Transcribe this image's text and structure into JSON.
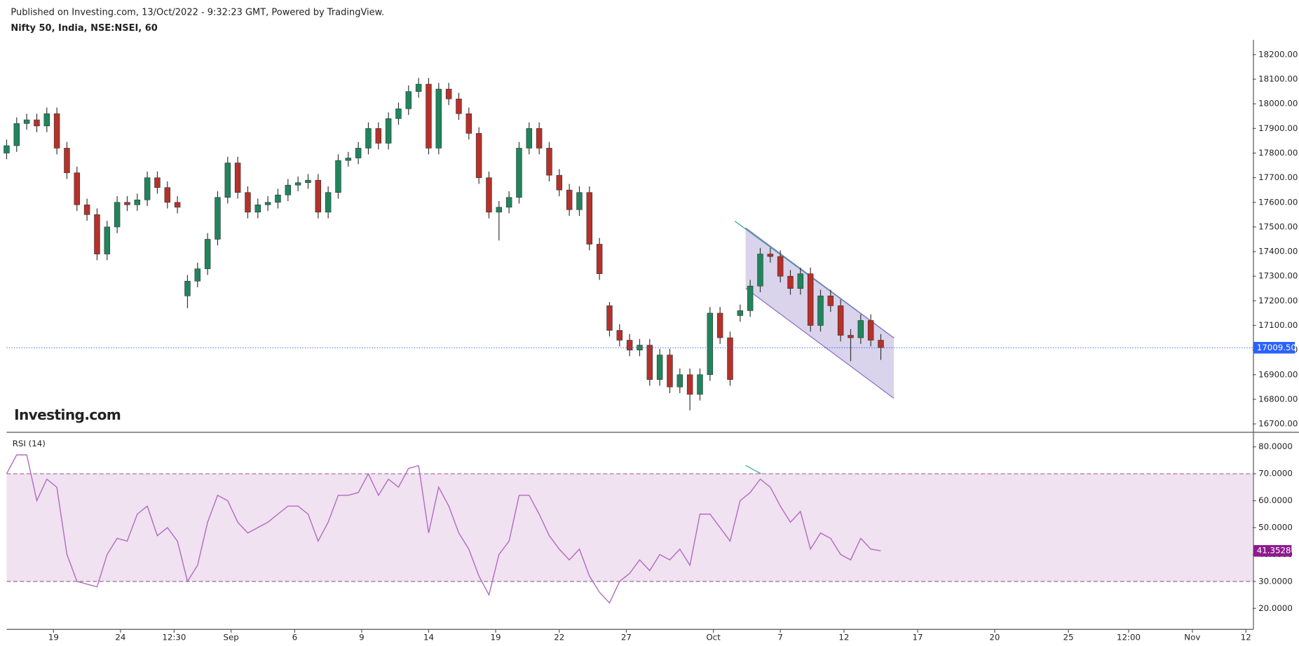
{
  "chart_data": {
    "type": "candlestick",
    "title": "Published on Investing.com, 13/Oct/2022 - 9:32:23 GMT, Powered by TradingView.",
    "subtitle": "Nifty 50, India, NSE:NSEI, 60",
    "watermark": "Investing.com",
    "up_color": "#20855c",
    "down_color": "#b5312a",
    "xlim": [
      0,
      372
    ],
    "xticks": [
      {
        "value": 14,
        "label": "19"
      },
      {
        "value": 34,
        "label": "24"
      },
      {
        "value": 50,
        "label": "12:30"
      },
      {
        "value": 67,
        "label": "Sep"
      },
      {
        "value": 86,
        "label": "6"
      },
      {
        "value": 106,
        "label": "9"
      },
      {
        "value": 126,
        "label": "14"
      },
      {
        "value": 146,
        "label": "19"
      },
      {
        "value": 165,
        "label": "22"
      },
      {
        "value": 185,
        "label": "27"
      },
      {
        "value": 211,
        "label": "Oct"
      },
      {
        "value": 231,
        "label": "7"
      },
      {
        "value": 250,
        "label": "12"
      },
      {
        "value": 272,
        "label": "17"
      },
      {
        "value": 295,
        "label": "20"
      },
      {
        "value": 317,
        "label": "25"
      },
      {
        "value": 335,
        "label": "12:00"
      },
      {
        "value": 354,
        "label": "Nov"
      },
      {
        "value": 370,
        "label": "12"
      }
    ],
    "ylim": [
      16666,
      18260
    ],
    "yticks": [
      {
        "value": 16700,
        "label": "16700.00"
      },
      {
        "value": 16800,
        "label": "16800.00"
      },
      {
        "value": 16900,
        "label": "16900.00"
      },
      {
        "value": 17000,
        "label": "17000.00"
      },
      {
        "value": 17100,
        "label": "17100.00"
      },
      {
        "value": 17200,
        "label": "17200.00"
      },
      {
        "value": 17300,
        "label": "17300.00"
      },
      {
        "value": 17400,
        "label": "17400.00"
      },
      {
        "value": 17500,
        "label": "17500.00"
      },
      {
        "value": 17600,
        "label": "17600.00"
      },
      {
        "value": 17700,
        "label": "17700.00"
      },
      {
        "value": 17800,
        "label": "17800.00"
      },
      {
        "value": 17900,
        "label": "17900.00"
      },
      {
        "value": 18000,
        "label": "18000.00"
      },
      {
        "value": 18100,
        "label": "18100.00"
      },
      {
        "value": 18200,
        "label": "18200.00"
      }
    ],
    "last_price": {
      "value": 17009.5,
      "label": "17009.50"
    },
    "x": [
      0,
      3,
      6,
      9,
      12,
      15,
      18,
      21,
      24,
      27,
      30,
      33,
      36,
      39,
      42,
      45,
      48,
      51,
      54,
      57,
      60,
      63,
      66,
      69,
      72,
      75,
      78,
      81,
      84,
      87,
      90,
      93,
      96,
      99,
      102,
      105,
      108,
      111,
      114,
      117,
      120,
      123,
      126,
      129,
      132,
      135,
      138,
      141,
      144,
      147,
      150,
      153,
      156,
      159,
      162,
      165,
      168,
      171,
      174,
      177,
      180,
      183,
      186,
      189,
      192,
      195,
      198,
      201,
      204,
      207,
      210,
      213,
      216,
      219,
      222,
      225,
      228,
      231,
      234,
      237,
      240,
      243,
      246,
      249,
      252,
      255,
      258,
      261
    ],
    "candles": [
      [
        17800,
        17855,
        17775,
        17830
      ],
      [
        17830,
        17945,
        17805,
        17920
      ],
      [
        17920,
        17960,
        17895,
        17935
      ],
      [
        17935,
        17960,
        17885,
        17910
      ],
      [
        17910,
        17985,
        17885,
        17960
      ],
      [
        17960,
        17985,
        17795,
        17820
      ],
      [
        17820,
        17845,
        17695,
        17720
      ],
      [
        17720,
        17745,
        17565,
        17590
      ],
      [
        17590,
        17615,
        17525,
        17550
      ],
      [
        17550,
        17575,
        17365,
        17390
      ],
      [
        17390,
        17525,
        17365,
        17500
      ],
      [
        17500,
        17625,
        17475,
        17600
      ],
      [
        17600,
        17625,
        17565,
        17590
      ],
      [
        17590,
        17635,
        17565,
        17610
      ],
      [
        17610,
        17725,
        17585,
        17700
      ],
      [
        17700,
        17725,
        17635,
        17660
      ],
      [
        17660,
        17685,
        17575,
        17600
      ],
      [
        17600,
        17625,
        17555,
        17580
      ],
      [
        17220,
        17305,
        17170,
        17280
      ],
      [
        17280,
        17355,
        17255,
        17330
      ],
      [
        17330,
        17475,
        17305,
        17450
      ],
      [
        17450,
        17645,
        17425,
        17620
      ],
      [
        17620,
        17785,
        17595,
        17760
      ],
      [
        17760,
        17785,
        17615,
        17640
      ],
      [
        17640,
        17665,
        17535,
        17560
      ],
      [
        17560,
        17615,
        17535,
        17590
      ],
      [
        17590,
        17625,
        17565,
        17600
      ],
      [
        17600,
        17655,
        17575,
        17630
      ],
      [
        17630,
        17695,
        17605,
        17670
      ],
      [
        17670,
        17705,
        17645,
        17680
      ],
      [
        17680,
        17715,
        17655,
        17690
      ],
      [
        17690,
        17715,
        17535,
        17560
      ],
      [
        17560,
        17665,
        17535,
        17640
      ],
      [
        17640,
        17795,
        17615,
        17770
      ],
      [
        17770,
        17805,
        17745,
        17780
      ],
      [
        17780,
        17845,
        17755,
        17820
      ],
      [
        17820,
        17925,
        17795,
        17900
      ],
      [
        17900,
        17925,
        17815,
        17840
      ],
      [
        17840,
        17965,
        17815,
        17940
      ],
      [
        17940,
        18005,
        17915,
        17980
      ],
      [
        17980,
        18075,
        17955,
        18050
      ],
      [
        18050,
        18105,
        18025,
        18080
      ],
      [
        18080,
        18105,
        17795,
        17820
      ],
      [
        17820,
        18085,
        17795,
        18060
      ],
      [
        18060,
        18085,
        17995,
        18020
      ],
      [
        18020,
        18045,
        17935,
        17960
      ],
      [
        17960,
        17985,
        17855,
        17880
      ],
      [
        17880,
        17905,
        17675,
        17700
      ],
      [
        17700,
        17725,
        17535,
        17560
      ],
      [
        17560,
        17605,
        17445,
        17580
      ],
      [
        17580,
        17645,
        17555,
        17620
      ],
      [
        17620,
        17845,
        17595,
        17820
      ],
      [
        17820,
        17925,
        17795,
        17900
      ],
      [
        17900,
        17925,
        17795,
        17820
      ],
      [
        17820,
        17845,
        17685,
        17710
      ],
      [
        17710,
        17735,
        17625,
        17650
      ],
      [
        17650,
        17675,
        17545,
        17570
      ],
      [
        17570,
        17665,
        17545,
        17640
      ],
      [
        17640,
        17665,
        17405,
        17430
      ],
      [
        17430,
        17455,
        17285,
        17310
      ],
      [
        17180,
        17195,
        17055,
        17080
      ],
      [
        17080,
        17105,
        17015,
        17040
      ],
      [
        17040,
        17065,
        16975,
        17000
      ],
      [
        17000,
        17045,
        16975,
        17020
      ],
      [
        17020,
        17045,
        16855,
        16880
      ],
      [
        16880,
        17005,
        16855,
        16980
      ],
      [
        16980,
        17005,
        16825,
        16850
      ],
      [
        16850,
        16925,
        16825,
        16900
      ],
      [
        16900,
        16925,
        16755,
        16820
      ],
      [
        16820,
        16925,
        16795,
        16900
      ],
      [
        16900,
        17175,
        16875,
        17150
      ],
      [
        17150,
        17175,
        17025,
        17050
      ],
      [
        17050,
        17075,
        16855,
        16880
      ],
      [
        17140,
        17185,
        17115,
        17160
      ],
      [
        17160,
        17285,
        17135,
        17260
      ],
      [
        17260,
        17415,
        17235,
        17390
      ],
      [
        17390,
        17415,
        17355,
        17380
      ],
      [
        17380,
        17405,
        17275,
        17300
      ],
      [
        17300,
        17325,
        17225,
        17250
      ],
      [
        17250,
        17335,
        17225,
        17310
      ],
      [
        17310,
        17335,
        17075,
        17100
      ],
      [
        17100,
        17245,
        17075,
        17220
      ],
      [
        17220,
        17245,
        17155,
        17180
      ],
      [
        17180,
        17205,
        17035,
        17060
      ],
      [
        17060,
        17085,
        16955,
        17050
      ],
      [
        17050,
        17145,
        17025,
        17120
      ],
      [
        17120,
        17145,
        17015,
        17040
      ],
      [
        17040,
        17065,
        16960,
        17010
      ]
    ],
    "rsi": {
      "name": "RSI (14)",
      "color": "#b46ac4",
      "ylim": [
        12.2,
        85.4
      ],
      "yticks": [
        {
          "value": 20,
          "label": "20.0000"
        },
        {
          "value": 30,
          "label": "30.0000"
        },
        {
          "value": 40,
          "label": "40.0000"
        },
        {
          "value": 50,
          "label": "50.0000"
        },
        {
          "value": 60,
          "label": "60.0000"
        },
        {
          "value": 70,
          "label": "70.0000"
        },
        {
          "value": 80,
          "label": "80.0000"
        }
      ],
      "levels": [
        30,
        70
      ],
      "last": {
        "value": 41.3528,
        "label": "41.3528"
      },
      "values": [
        70,
        77,
        77,
        60,
        68,
        65,
        40,
        30,
        29,
        28,
        40,
        46,
        45,
        55,
        58,
        47,
        50,
        45,
        30,
        36,
        52,
        62,
        60,
        52,
        48,
        50,
        52,
        55,
        58,
        58,
        55,
        45,
        52,
        62,
        62,
        63,
        70,
        62,
        68,
        65,
        72,
        73,
        48,
        65,
        58,
        48,
        42,
        32,
        25,
        40,
        45,
        62,
        62,
        55,
        47,
        42,
        38,
        42,
        32,
        26,
        22,
        30,
        33,
        38,
        34,
        40,
        38,
        42,
        36,
        55,
        55,
        50,
        45,
        60,
        63,
        68,
        65,
        58,
        52,
        56,
        42,
        48,
        46,
        40,
        38,
        46,
        42,
        41.35
      ]
    }
  }
}
